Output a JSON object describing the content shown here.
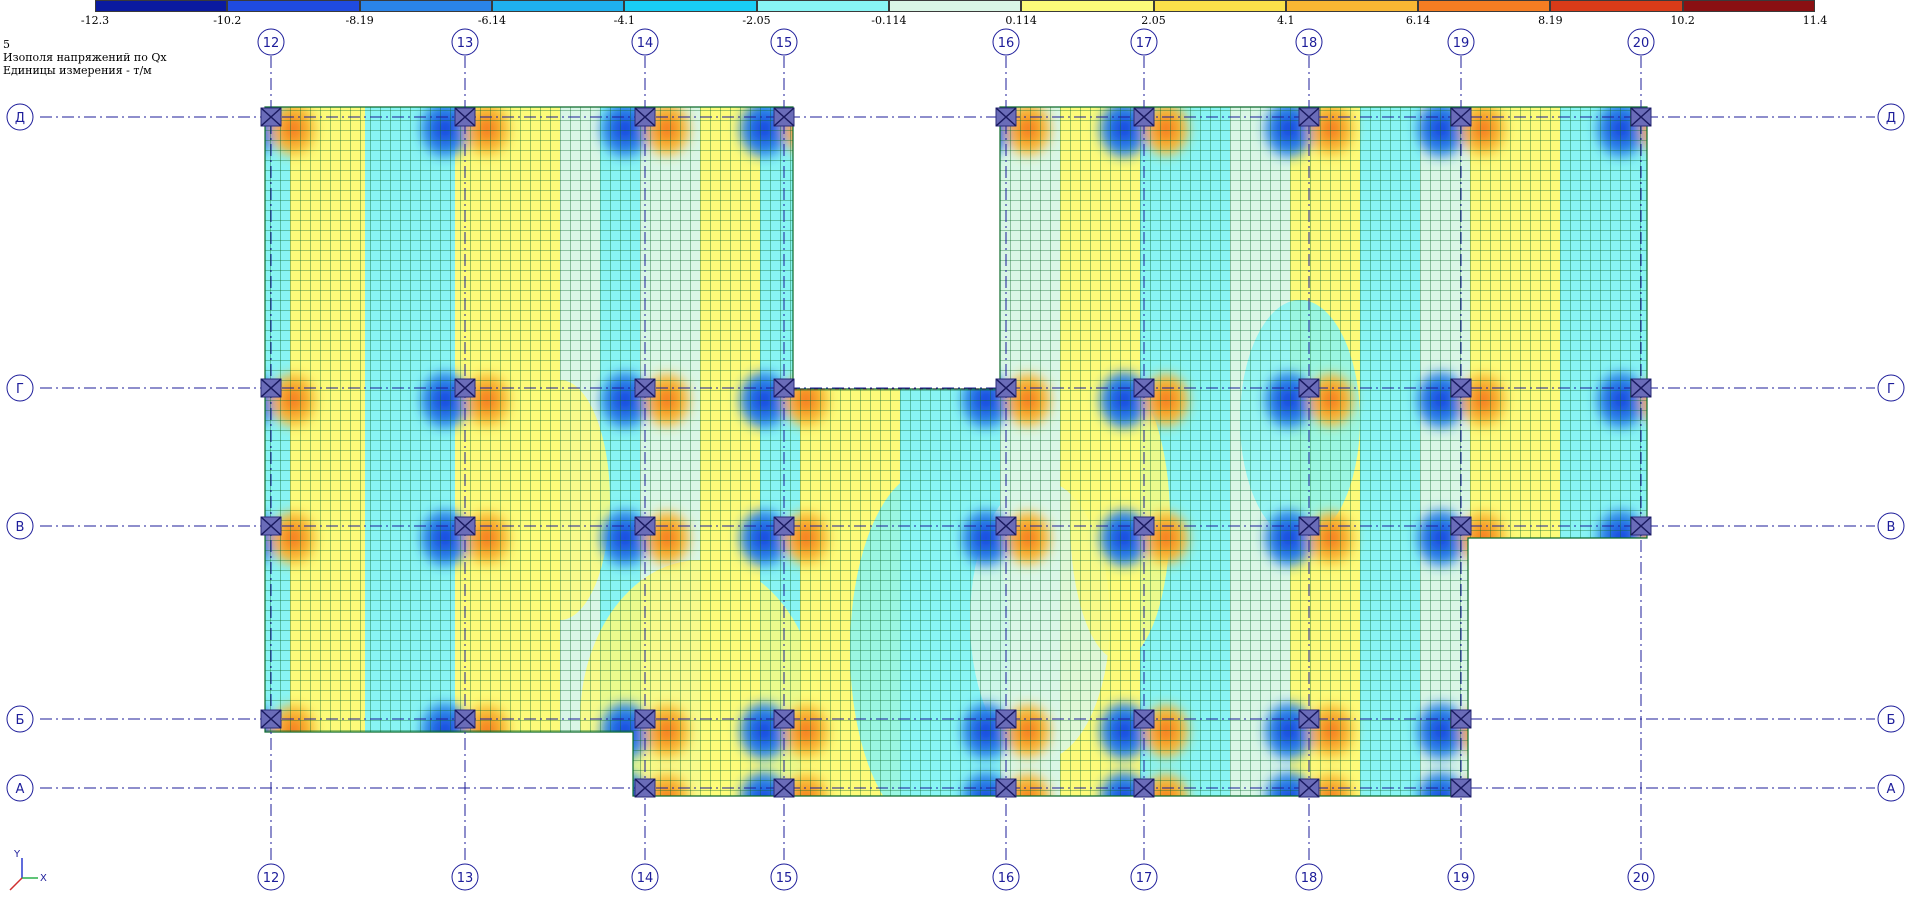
{
  "legend": {
    "values": [
      "-12.3",
      "-10.2",
      "-8.19",
      "-6.14",
      "-4.1",
      "-2.05",
      "-0.114",
      "0.114",
      "2.05",
      "4.1",
      "6.14",
      "8.19",
      "10.2",
      "11.4"
    ],
    "colors": [
      "#0a1aa0",
      "#1f4be0",
      "#2a84e8",
      "#1fb0ee",
      "#19cdf5",
      "#88f4f4",
      "#d9f6e6",
      "#fdfb7a",
      "#fbe14a",
      "#f8b733",
      "#f57d22",
      "#d93b18",
      "#8a1012"
    ]
  },
  "info": {
    "loadcase": "5",
    "title": "Изополя напряжений по Qx",
    "units": "Единицы измерения - т/м"
  },
  "grid_columns": [
    "12",
    "13",
    "14",
    "15",
    "16",
    "17",
    "18",
    "19",
    "20"
  ],
  "grid_rows": [
    "Д",
    "Г",
    "В",
    "Б",
    "А"
  ],
  "ucs": {
    "y_label": "Y",
    "x_label": "X"
  },
  "colors": {
    "grid_axis": "#1c1c9a",
    "mesh": "#0c6a2a",
    "column": "#6a6cb8"
  }
}
